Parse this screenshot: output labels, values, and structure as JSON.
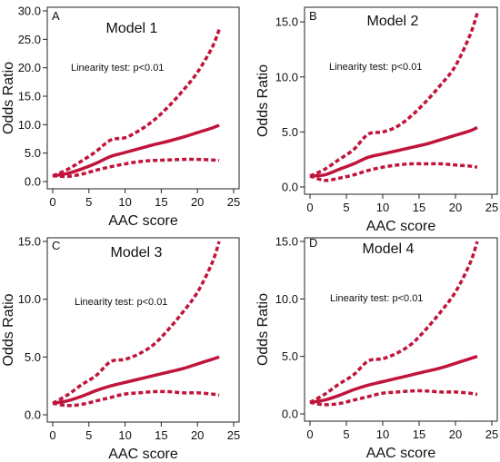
{
  "colors": {
    "curve": "#c0143c",
    "axis": "#222222",
    "text": "#111111"
  },
  "chart_data": [
    {
      "type": "line",
      "panel_label": "A",
      "title": "Model 1",
      "annotation": "Linearity test: p<0.01",
      "xlabel": "AAC score",
      "ylabel": "Odds Ratio",
      "xlim": [
        0,
        25
      ],
      "ylim": [
        0,
        30
      ],
      "xticks": [
        0,
        5,
        10,
        15,
        20,
        25
      ],
      "xtick_labels": [
        "0",
        "5",
        "10",
        "15",
        "20",
        "25"
      ],
      "yticks": [
        0,
        5,
        10,
        15,
        20,
        25,
        30
      ],
      "ytick_labels": [
        "0.0",
        "5.0",
        "10.0",
        "15.0",
        "20.0",
        "25.0",
        "30.0"
      ],
      "x": [
        0,
        2,
        4,
        6,
        8,
        10,
        12,
        14,
        16,
        18,
        20,
        22,
        23
      ],
      "series": [
        {
          "role": "estimate",
          "style": "solid",
          "values": [
            1.0,
            1.4,
            2.2,
            3.2,
            4.4,
            5.1,
            5.8,
            6.5,
            7.1,
            7.8,
            8.6,
            9.4,
            9.9
          ]
        },
        {
          "role": "upper",
          "style": "dashed",
          "values": [
            1.0,
            2.1,
            3.6,
            5.3,
            7.3,
            7.7,
            9.0,
            10.8,
            13.2,
            16.0,
            19.2,
            23.5,
            26.7
          ]
        },
        {
          "role": "lower",
          "style": "dashed",
          "values": [
            1.0,
            0.9,
            1.3,
            2.0,
            2.6,
            3.1,
            3.5,
            3.7,
            3.8,
            3.9,
            3.9,
            3.8,
            3.7
          ]
        }
      ]
    },
    {
      "type": "line",
      "panel_label": "B",
      "title": "Model 2",
      "annotation": "Linearity test: p<0.01",
      "xlabel": "AAC score",
      "ylabel": "Odds Ratio",
      "xlim": [
        0,
        25
      ],
      "ylim": [
        0,
        16
      ],
      "xticks": [
        0,
        5,
        10,
        15,
        20,
        25
      ],
      "xtick_labels": [
        "0",
        "5",
        "10",
        "15",
        "20",
        "25"
      ],
      "yticks": [
        0,
        5,
        10,
        15
      ],
      "ytick_labels": [
        "0.0",
        "5.0",
        "10.0",
        "15.0"
      ],
      "x": [
        0,
        2,
        4,
        6,
        8,
        10,
        12,
        14,
        16,
        18,
        20,
        22,
        23
      ],
      "series": [
        {
          "role": "estimate",
          "style": "solid",
          "values": [
            1.0,
            1.1,
            1.6,
            2.1,
            2.7,
            3.0,
            3.3,
            3.6,
            3.9,
            4.3,
            4.7,
            5.1,
            5.4
          ]
        },
        {
          "role": "upper",
          "style": "dashed",
          "values": [
            1.0,
            1.6,
            2.5,
            3.4,
            4.8,
            5.0,
            5.5,
            6.5,
            7.8,
            9.3,
            11.0,
            13.8,
            15.8
          ]
        },
        {
          "role": "lower",
          "style": "dashed",
          "values": [
            1.0,
            0.6,
            0.8,
            1.1,
            1.5,
            1.8,
            2.0,
            2.1,
            2.1,
            2.1,
            2.0,
            1.9,
            1.8
          ]
        }
      ]
    },
    {
      "type": "line",
      "panel_label": "C",
      "title": "Model 3",
      "annotation": "Linearity test: p<0.01",
      "xlabel": "AAC score",
      "ylabel": "Odds Ratio",
      "xlim": [
        0,
        25
      ],
      "ylim": [
        0,
        15
      ],
      "xticks": [
        0,
        5,
        10,
        15,
        20,
        25
      ],
      "xtick_labels": [
        "0",
        "5",
        "10",
        "15",
        "20",
        "25"
      ],
      "yticks": [
        0,
        5,
        10,
        15
      ],
      "ytick_labels": [
        "0.0",
        "5.0",
        "10.0",
        "15.0"
      ],
      "x": [
        0,
        2,
        4,
        6,
        8,
        10,
        12,
        14,
        16,
        18,
        20,
        22,
        23
      ],
      "series": [
        {
          "role": "estimate",
          "style": "solid",
          "values": [
            1.0,
            1.2,
            1.6,
            2.1,
            2.5,
            2.8,
            3.1,
            3.4,
            3.7,
            4.0,
            4.4,
            4.8,
            5.0
          ]
        },
        {
          "role": "upper",
          "style": "dashed",
          "values": [
            1.0,
            1.7,
            2.6,
            3.4,
            4.6,
            4.8,
            5.3,
            6.1,
            7.4,
            8.9,
            10.6,
            13.1,
            15.0
          ]
        },
        {
          "role": "lower",
          "style": "dashed",
          "values": [
            1.0,
            0.8,
            0.9,
            1.2,
            1.5,
            1.8,
            1.9,
            2.0,
            2.0,
            1.9,
            1.9,
            1.8,
            1.7
          ]
        }
      ]
    },
    {
      "type": "line",
      "panel_label": "D",
      "title": "Model 4",
      "annotation": "Linearity test: p<0.01",
      "xlabel": "AAC score",
      "ylabel": "Odds Ratio",
      "xlim": [
        0,
        25
      ],
      "ylim": [
        0,
        15
      ],
      "xticks": [
        0,
        5,
        10,
        15,
        20,
        25
      ],
      "xtick_labels": [
        "0",
        "5",
        "10",
        "15",
        "20",
        "25"
      ],
      "yticks": [
        0,
        5,
        10,
        15
      ],
      "ytick_labels": [
        "0.0",
        "5.0",
        "10.0",
        "15.0"
      ],
      "x": [
        0,
        2,
        4,
        6,
        8,
        10,
        12,
        14,
        16,
        18,
        20,
        22,
        23
      ],
      "series": [
        {
          "role": "estimate",
          "style": "solid",
          "values": [
            1.0,
            1.2,
            1.6,
            2.1,
            2.5,
            2.8,
            3.1,
            3.4,
            3.7,
            4.0,
            4.4,
            4.8,
            5.0
          ]
        },
        {
          "role": "upper",
          "style": "dashed",
          "values": [
            1.0,
            1.7,
            2.6,
            3.4,
            4.6,
            4.8,
            5.3,
            6.1,
            7.4,
            8.9,
            10.6,
            13.1,
            15.0
          ]
        },
        {
          "role": "lower",
          "style": "dashed",
          "values": [
            1.0,
            0.8,
            0.9,
            1.2,
            1.5,
            1.8,
            1.9,
            2.0,
            2.0,
            1.9,
            1.9,
            1.8,
            1.7
          ]
        }
      ]
    }
  ]
}
